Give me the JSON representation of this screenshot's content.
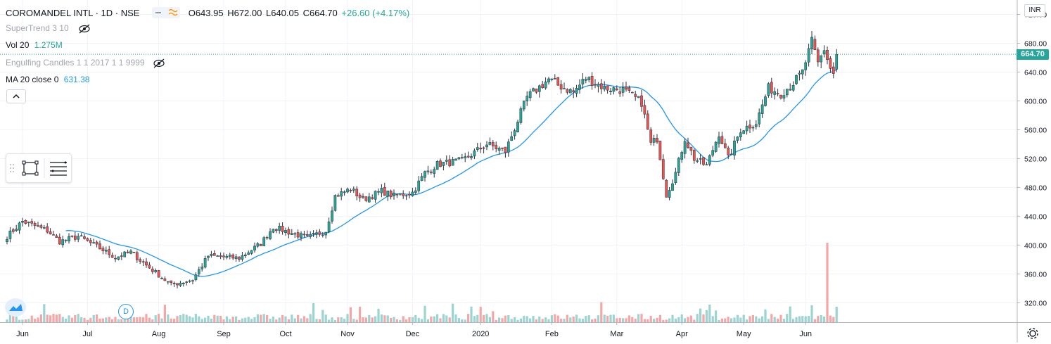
{
  "header": {
    "symbol": "COROMANDEL INTL · 1D · NSE",
    "open": "O643.95",
    "high": "H672.00",
    "low": "L640.05",
    "close": "C664.70",
    "change": "+26.60 (+4.17%)"
  },
  "indicators": {
    "supertrend": "SuperTrend 3 10",
    "volume_label": "Vol 20",
    "volume_value": "1.275M",
    "engulfing": "Engulfing Candles 1 1 2017 1 1 9999",
    "ma_label": "MA 20 close 0",
    "ma_value": "631.38"
  },
  "price_axis": {
    "currency": "INR",
    "last_price": "664.70"
  },
  "markers": {
    "dividend": "D"
  },
  "colors": {
    "up": "#26a69a",
    "down": "#ef5350",
    "ma": "#2196f3",
    "vol_up": "#9bd4d0",
    "vol_down": "#f5a6a6",
    "grid": "#f0f3fa",
    "text": "#131722"
  },
  "chart_data": {
    "type": "candlestick",
    "title": "COROMANDEL INTL · 1D · NSE",
    "ylabel": "INR",
    "ylim": [
      293,
      740
    ],
    "y_ticks": [
      320,
      360,
      400,
      440,
      480,
      520,
      560,
      600,
      640,
      680,
      720
    ],
    "x_ticks": [
      {
        "label": "Jun",
        "day": 0
      },
      {
        "label": "Jul",
        "day": 21
      },
      {
        "label": "Aug",
        "day": 44
      },
      {
        "label": "Sep",
        "day": 65
      },
      {
        "label": "Oct",
        "day": 85
      },
      {
        "label": "Nov",
        "day": 105
      },
      {
        "label": "Dec",
        "day": 126
      },
      {
        "label": "2020",
        "day": 148
      },
      {
        "label": "Feb",
        "day": 171
      },
      {
        "label": "Mar",
        "day": 192
      },
      {
        "label": "Apr",
        "day": 213
      },
      {
        "label": "May",
        "day": 233
      },
      {
        "label": "Jun",
        "day": 253
      }
    ],
    "keyframes": [
      {
        "day": -5,
        "close": 412
      },
      {
        "day": 0,
        "close": 433
      },
      {
        "day": 8,
        "close": 420
      },
      {
        "day": 12,
        "close": 405
      },
      {
        "day": 18,
        "close": 412
      },
      {
        "day": 24,
        "close": 398
      },
      {
        "day": 30,
        "close": 383
      },
      {
        "day": 35,
        "close": 390
      },
      {
        "day": 40,
        "close": 372
      },
      {
        "day": 48,
        "close": 345
      },
      {
        "day": 55,
        "close": 352
      },
      {
        "day": 60,
        "close": 385
      },
      {
        "day": 70,
        "close": 382
      },
      {
        "day": 77,
        "close": 402
      },
      {
        "day": 81,
        "close": 425
      },
      {
        "day": 86,
        "close": 418
      },
      {
        "day": 92,
        "close": 410
      },
      {
        "day": 98,
        "close": 420
      },
      {
        "day": 101,
        "close": 468
      },
      {
        "day": 106,
        "close": 478
      },
      {
        "day": 110,
        "close": 463
      },
      {
        "day": 116,
        "close": 475
      },
      {
        "day": 120,
        "close": 468
      },
      {
        "day": 126,
        "close": 473
      },
      {
        "day": 130,
        "close": 500
      },
      {
        "day": 134,
        "close": 512
      },
      {
        "day": 142,
        "close": 517
      },
      {
        "day": 150,
        "close": 540
      },
      {
        "day": 156,
        "close": 530
      },
      {
        "day": 163,
        "close": 605
      },
      {
        "day": 170,
        "close": 630
      },
      {
        "day": 173,
        "close": 622
      },
      {
        "day": 178,
        "close": 612
      },
      {
        "day": 182,
        "close": 632
      },
      {
        "day": 188,
        "close": 618
      },
      {
        "day": 194,
        "close": 615
      },
      {
        "day": 200,
        "close": 598
      },
      {
        "day": 203,
        "close": 540
      },
      {
        "day": 205,
        "close": 548
      },
      {
        "day": 208,
        "close": 470
      },
      {
        "day": 211,
        "close": 500
      },
      {
        "day": 214,
        "close": 548
      },
      {
        "day": 217,
        "close": 520
      },
      {
        "day": 221,
        "close": 510
      },
      {
        "day": 225,
        "close": 555
      },
      {
        "day": 228,
        "close": 520
      },
      {
        "day": 232,
        "close": 560
      },
      {
        "day": 237,
        "close": 570
      },
      {
        "day": 241,
        "close": 618
      },
      {
        "day": 245,
        "close": 610
      },
      {
        "day": 249,
        "close": 625
      },
      {
        "day": 252,
        "close": 640
      },
      {
        "day": 255,
        "close": 682
      },
      {
        "day": 257,
        "close": 652
      },
      {
        "day": 259,
        "close": 672
      },
      {
        "day": 261,
        "close": 645
      },
      {
        "day": 262,
        "close": 638
      },
      {
        "day": 263,
        "close": 665
      }
    ],
    "last_candle": {
      "open": 643.95,
      "high": 672.0,
      "low": 640.05,
      "close": 664.7
    },
    "ma_period": 20,
    "ma_last": 631.38,
    "volume_spike": {
      "day": 260,
      "note": "largest volume bar"
    }
  }
}
